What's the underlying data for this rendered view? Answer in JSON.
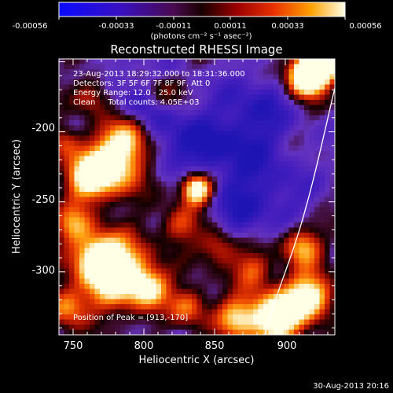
{
  "colorbar": {
    "tick_labels": [
      "-0.00056",
      "-0.00033",
      "-0.00011",
      "0.00011",
      "0.00033",
      "0.00056"
    ],
    "unit_label": "(photons cm⁻² s⁻¹ asec⁻²)",
    "range": [
      -0.00056,
      0.00056
    ]
  },
  "plot": {
    "title": "Reconstructed RHESSI Image",
    "info_lines": [
      "23-Aug-2013 18:29:32.000 to 18:31:36.000",
      "Detectors: 3F 5F 6F 7F 8F 9F, Att 0",
      "Energy Range: 12.0 - 25.0 keV",
      "Clean     Total counts: 4.05E+03"
    ],
    "peak_label": "Position of Peak = [913,-170]",
    "x_axis_label": "Heliocentric X (arcsec)",
    "y_axis_label": "Heliocentric Y (arcsec)",
    "x_ticks": [
      "750",
      "800",
      "850",
      "900"
    ],
    "y_ticks": [
      "-200",
      "-250",
      "-300"
    ],
    "x_range": [
      740,
      935
    ],
    "y_range": [
      -345,
      -148
    ]
  },
  "footer": {
    "timestamp": "30-Aug-2013 20:16"
  }
}
